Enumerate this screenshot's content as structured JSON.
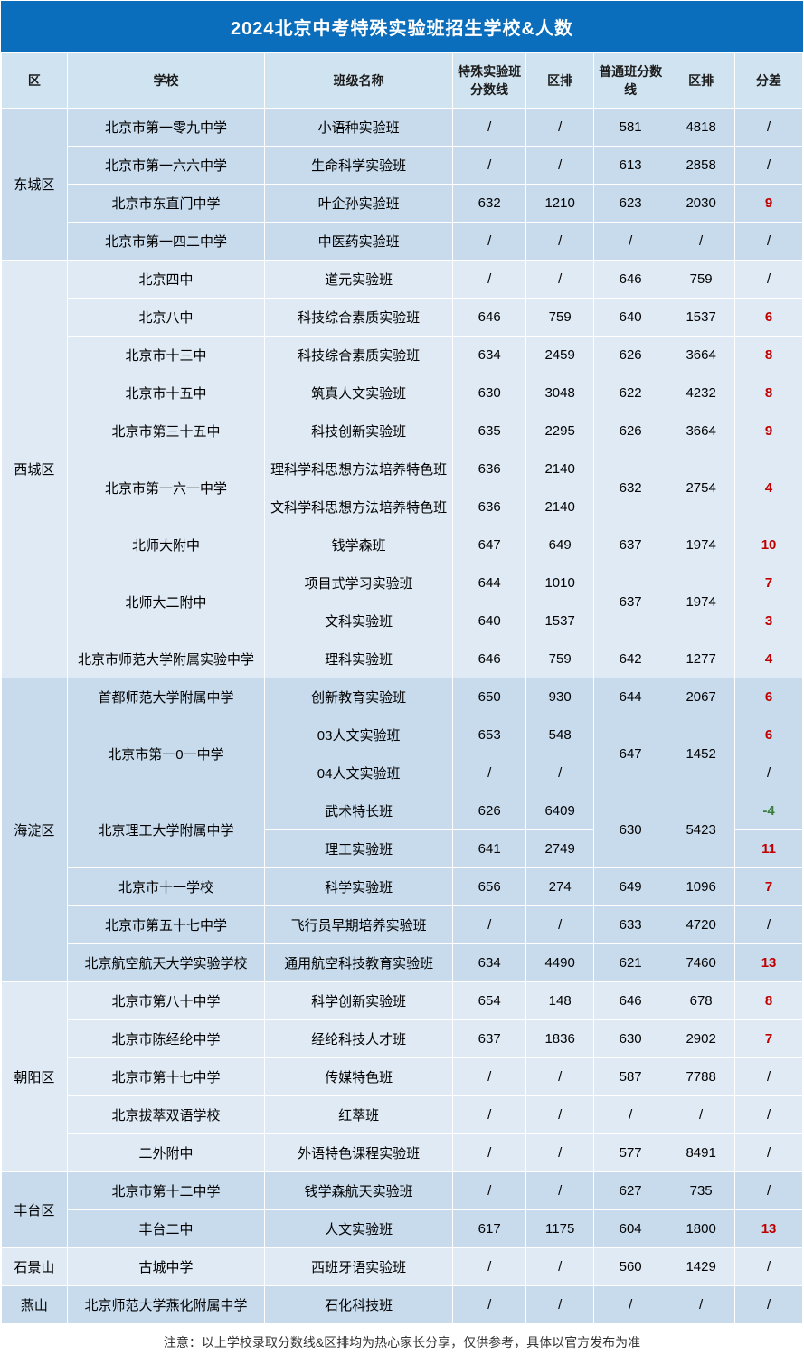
{
  "title": "2024北京中考特殊实验班招生学校&人数",
  "footnote": "注意：以上学校录取分数线&区排均为热心家长分享，仅供参考，具体以官方发布为准",
  "colors": {
    "header_bg": "#0a6ebd",
    "header_text": "#ffffff",
    "th_bg": "#d0e3f0",
    "band_a": "#c7dbed",
    "band_b": "#dfeaf4",
    "diff_red": "#c00000",
    "diff_green": "#3a7d3a",
    "border": "#ffffff"
  },
  "columns": [
    "区",
    "学校",
    "班级名称",
    "特殊实验班分数线",
    "区排",
    "普通班分数线",
    "区排",
    "分差"
  ],
  "districts": [
    {
      "name": "东城区",
      "band": "a",
      "rows": [
        {
          "school": "北京市第一零九中学",
          "school_span": 1,
          "class": "小语种实验班",
          "s1": "/",
          "r1": "/",
          "s2": "581",
          "r2": "4818",
          "s2_span": 1,
          "r2_span": 1,
          "diff": "/",
          "diff_cls": ""
        },
        {
          "school": "北京市第一六六中学",
          "school_span": 1,
          "class": "生命科学实验班",
          "s1": "/",
          "r1": "/",
          "s2": "613",
          "r2": "2858",
          "s2_span": 1,
          "r2_span": 1,
          "diff": "/",
          "diff_cls": ""
        },
        {
          "school": "北京市东直门中学",
          "school_span": 1,
          "class": "叶企孙实验班",
          "s1": "632",
          "r1": "1210",
          "s2": "623",
          "r2": "2030",
          "s2_span": 1,
          "r2_span": 1,
          "diff": "9",
          "diff_cls": "diff-red"
        },
        {
          "school": "北京市第一四二中学",
          "school_span": 1,
          "class": "中医药实验班",
          "s1": "/",
          "r1": "/",
          "s2": "/",
          "r2": "/",
          "s2_span": 1,
          "r2_span": 1,
          "diff": "/",
          "diff_cls": ""
        }
      ]
    },
    {
      "name": "西城区",
      "band": "b",
      "rows": [
        {
          "school": "北京四中",
          "school_span": 1,
          "class": "道元实验班",
          "s1": "/",
          "r1": "/",
          "s2": "646",
          "r2": "759",
          "s2_span": 1,
          "r2_span": 1,
          "diff": "/",
          "diff_cls": ""
        },
        {
          "school": "北京八中",
          "school_span": 1,
          "class": "科技综合素质实验班",
          "s1": "646",
          "r1": "759",
          "s2": "640",
          "r2": "1537",
          "s2_span": 1,
          "r2_span": 1,
          "diff": "6",
          "diff_cls": "diff-red"
        },
        {
          "school": "北京市十三中",
          "school_span": 1,
          "class": "科技综合素质实验班",
          "s1": "634",
          "r1": "2459",
          "s2": "626",
          "r2": "3664",
          "s2_span": 1,
          "r2_span": 1,
          "diff": "8",
          "diff_cls": "diff-red"
        },
        {
          "school": "北京市十五中",
          "school_span": 1,
          "class": "筑真人文实验班",
          "s1": "630",
          "r1": "3048",
          "s2": "622",
          "r2": "4232",
          "s2_span": 1,
          "r2_span": 1,
          "diff": "8",
          "diff_cls": "diff-red"
        },
        {
          "school": "北京市第三十五中",
          "school_span": 1,
          "class": "科技创新实验班",
          "s1": "635",
          "r1": "2295",
          "s2": "626",
          "r2": "3664",
          "s2_span": 1,
          "r2_span": 1,
          "diff": "9",
          "diff_cls": "diff-red"
        },
        {
          "school": "北京市第一六一中学",
          "school_span": 2,
          "class": "理科学科思想方法培养特色班",
          "s1": "636",
          "r1": "2140",
          "s2": "632",
          "r2": "2754",
          "s2_span": 2,
          "r2_span": 2,
          "diff": "4",
          "diff_cls": "diff-red",
          "diff_span": 2
        },
        {
          "school": "",
          "school_span": 0,
          "class": "文科学科思想方法培养特色班",
          "s1": "636",
          "r1": "2140",
          "s2": "",
          "r2": "",
          "s2_span": 0,
          "r2_span": 0,
          "diff": "",
          "diff_cls": "",
          "diff_span": 0
        },
        {
          "school": "北师大附中",
          "school_span": 1,
          "class": "钱学森班",
          "s1": "647",
          "r1": "649",
          "s2": "637",
          "r2": "1974",
          "s2_span": 1,
          "r2_span": 1,
          "diff": "10",
          "diff_cls": "diff-red"
        },
        {
          "school": "北师大二附中",
          "school_span": 2,
          "class": "项目式学习实验班",
          "s1": "644",
          "r1": "1010",
          "s2": "637",
          "r2": "1974",
          "s2_span": 2,
          "r2_span": 2,
          "diff": "7",
          "diff_cls": "diff-red"
        },
        {
          "school": "",
          "school_span": 0,
          "class": "文科实验班",
          "s1": "640",
          "r1": "1537",
          "s2": "",
          "r2": "",
          "s2_span": 0,
          "r2_span": 0,
          "diff": "3",
          "diff_cls": "diff-red"
        },
        {
          "school": "北京市师范大学附属实验中学",
          "school_span": 1,
          "class": "理科实验班",
          "s1": "646",
          "r1": "759",
          "s2": "642",
          "r2": "1277",
          "s2_span": 1,
          "r2_span": 1,
          "diff": "4",
          "diff_cls": "diff-red"
        }
      ]
    },
    {
      "name": "海淀区",
      "band": "a",
      "rows": [
        {
          "school": "首都师范大学附属中学",
          "school_span": 1,
          "class": "创新教育实验班",
          "s1": "650",
          "r1": "930",
          "s2": "644",
          "r2": "2067",
          "s2_span": 1,
          "r2_span": 1,
          "diff": "6",
          "diff_cls": "diff-red"
        },
        {
          "school": "北京市第一0一中学",
          "school_span": 2,
          "class": "03人文实验班",
          "s1": "653",
          "r1": "548",
          "s2": "647",
          "r2": "1452",
          "s2_span": 2,
          "r2_span": 2,
          "diff": "6",
          "diff_cls": "diff-red"
        },
        {
          "school": "",
          "school_span": 0,
          "class": "04人文实验班",
          "s1": "/",
          "r1": "/",
          "s2": "",
          "r2": "",
          "s2_span": 0,
          "r2_span": 0,
          "diff": "/",
          "diff_cls": ""
        },
        {
          "school": "北京理工大学附属中学",
          "school_span": 2,
          "class": "武术特长班",
          "s1": "626",
          "r1": "6409",
          "s2": "630",
          "r2": "5423",
          "s2_span": 2,
          "r2_span": 2,
          "diff": "-4",
          "diff_cls": "diff-green"
        },
        {
          "school": "",
          "school_span": 0,
          "class": "理工实验班",
          "s1": "641",
          "r1": "2749",
          "s2": "",
          "r2": "",
          "s2_span": 0,
          "r2_span": 0,
          "diff": "11",
          "diff_cls": "diff-red"
        },
        {
          "school": "北京市十一学校",
          "school_span": 1,
          "class": "科学实验班",
          "s1": "656",
          "r1": "274",
          "s2": "649",
          "r2": "1096",
          "s2_span": 1,
          "r2_span": 1,
          "diff": "7",
          "diff_cls": "diff-red"
        },
        {
          "school": "北京市第五十七中学",
          "school_span": 1,
          "class": "飞行员早期培养实验班",
          "s1": "/",
          "r1": "/",
          "s2": "633",
          "r2": "4720",
          "s2_span": 1,
          "r2_span": 1,
          "diff": "/",
          "diff_cls": ""
        },
        {
          "school": "北京航空航天大学实验学校",
          "school_span": 1,
          "class": "通用航空科技教育实验班",
          "s1": "634",
          "r1": "4490",
          "s2": "621",
          "r2": "7460",
          "s2_span": 1,
          "r2_span": 1,
          "diff": "13",
          "diff_cls": "diff-red"
        }
      ]
    },
    {
      "name": "朝阳区",
      "band": "b",
      "rows": [
        {
          "school": "北京市第八十中学",
          "school_span": 1,
          "class": "科学创新实验班",
          "s1": "654",
          "r1": "148",
          "s2": "646",
          "r2": "678",
          "s2_span": 1,
          "r2_span": 1,
          "diff": "8",
          "diff_cls": "diff-red"
        },
        {
          "school": "北京市陈经纶中学",
          "school_span": 1,
          "class": "经纶科技人才班",
          "s1": "637",
          "r1": "1836",
          "s2": "630",
          "r2": "2902",
          "s2_span": 1,
          "r2_span": 1,
          "diff": "7",
          "diff_cls": "diff-red"
        },
        {
          "school": "北京市第十七中学",
          "school_span": 1,
          "class": "传媒特色班",
          "s1": "/",
          "r1": "/",
          "s2": "587",
          "r2": "7788",
          "s2_span": 1,
          "r2_span": 1,
          "diff": "/",
          "diff_cls": ""
        },
        {
          "school": "北京拔萃双语学校",
          "school_span": 1,
          "class": "红萃班",
          "s1": "/",
          "r1": "/",
          "s2": "/",
          "r2": "/",
          "s2_span": 1,
          "r2_span": 1,
          "diff": "/",
          "diff_cls": ""
        },
        {
          "school": "二外附中",
          "school_span": 1,
          "class": "外语特色课程实验班",
          "s1": "/",
          "r1": "/",
          "s2": "577",
          "r2": "8491",
          "s2_span": 1,
          "r2_span": 1,
          "diff": "/",
          "diff_cls": ""
        }
      ]
    },
    {
      "name": "丰台区",
      "band": "a",
      "rows": [
        {
          "school": "北京市第十二中学",
          "school_span": 1,
          "class": "钱学森航天实验班",
          "s1": "/",
          "r1": "/",
          "s2": "627",
          "r2": "735",
          "s2_span": 1,
          "r2_span": 1,
          "diff": "/",
          "diff_cls": ""
        },
        {
          "school": "丰台二中",
          "school_span": 1,
          "class": "人文实验班",
          "s1": "617",
          "r1": "1175",
          "s2": "604",
          "r2": "1800",
          "s2_span": 1,
          "r2_span": 1,
          "diff": "13",
          "diff_cls": "diff-red"
        }
      ]
    },
    {
      "name": "石景山",
      "band": "b",
      "rows": [
        {
          "school": "古城中学",
          "school_span": 1,
          "class": "西班牙语实验班",
          "s1": "/",
          "r1": "/",
          "s2": "560",
          "r2": "1429",
          "s2_span": 1,
          "r2_span": 1,
          "diff": "/",
          "diff_cls": ""
        }
      ]
    },
    {
      "name": "燕山",
      "band": "a",
      "rows": [
        {
          "school": "北京师范大学燕化附属中学",
          "school_span": 1,
          "class": "石化科技班",
          "s1": "/",
          "r1": "/",
          "s2": "/",
          "r2": "/",
          "s2_span": 1,
          "r2_span": 1,
          "diff": "/",
          "diff_cls": ""
        }
      ]
    }
  ]
}
